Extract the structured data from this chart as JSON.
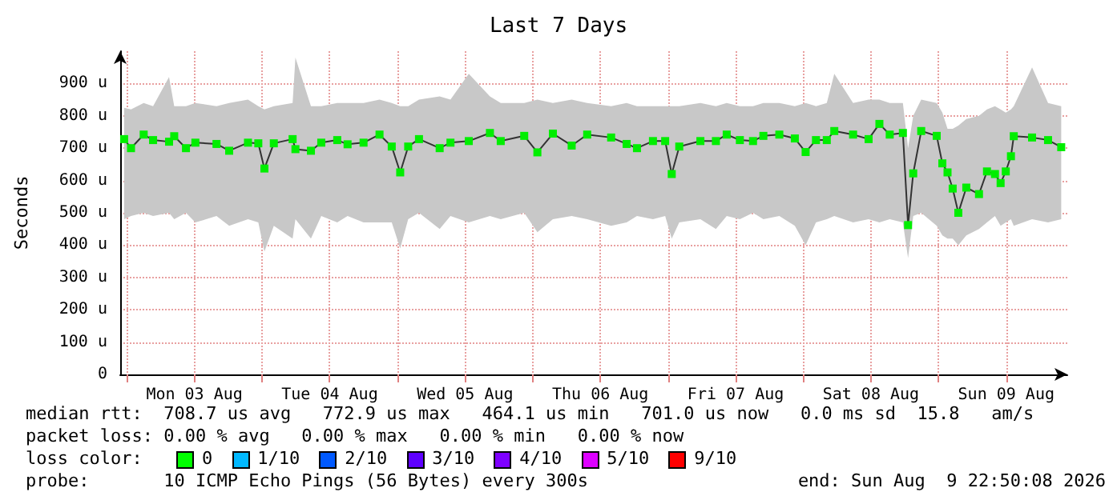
{
  "chart_data": {
    "type": "line",
    "title": "Last 7 Days",
    "ylabel": "Seconds",
    "x": [
      "2026-08-02T23:32",
      "2026-08-03T00:45",
      "2026-08-03T03:00",
      "2026-08-03T04:40",
      "2026-08-03T07:30",
      "2026-08-03T08:25",
      "2026-08-03T10:30",
      "2026-08-03T12:10",
      "2026-08-03T15:55",
      "2026-08-03T18:10",
      "2026-08-03T21:30",
      "2026-08-03T23:20",
      "2026-08-04T00:25",
      "2026-08-04T02:05",
      "2026-08-04T05:25",
      "2026-08-04T05:55",
      "2026-08-04T08:40",
      "2026-08-04T10:30",
      "2026-08-04T13:20",
      "2026-08-04T15:10",
      "2026-08-04T18:00",
      "2026-08-04T20:50",
      "2026-08-04T23:00",
      "2026-08-05T00:30",
      "2026-08-05T01:55",
      "2026-08-05T03:50",
      "2026-08-05T07:30",
      "2026-08-05T09:25",
      "2026-08-05T12:40",
      "2026-08-05T16:25",
      "2026-08-05T18:20",
      "2026-08-05T22:30",
      "2026-08-06T00:50",
      "2026-08-06T03:35",
      "2026-08-06T06:55",
      "2026-08-06T09:40",
      "2026-08-06T13:55",
      "2026-08-06T16:40",
      "2026-08-06T18:30",
      "2026-08-06T21:20",
      "2026-08-06T23:30",
      "2026-08-07T00:40",
      "2026-08-07T02:00",
      "2026-08-07T05:45",
      "2026-08-07T08:30",
      "2026-08-07T10:25",
      "2026-08-07T12:45",
      "2026-08-07T15:05",
      "2026-08-07T16:55",
      "2026-08-07T19:45",
      "2026-08-07T22:30",
      "2026-08-08T00:25",
      "2026-08-08T02:15",
      "2026-08-08T04:10",
      "2026-08-08T05:30",
      "2026-08-08T08:50",
      "2026-08-08T11:35",
      "2026-08-08T13:30",
      "2026-08-08T15:20",
      "2026-08-08T17:40",
      "2026-08-08T18:35",
      "2026-08-08T19:30",
      "2026-08-08T20:55",
      "2026-08-08T23:40",
      "2026-08-09T00:40",
      "2026-08-09T01:35",
      "2026-08-09T02:30",
      "2026-08-09T03:30",
      "2026-08-09T04:55",
      "2026-08-09T07:10",
      "2026-08-09T08:35",
      "2026-08-09T10:00",
      "2026-08-09T11:00",
      "2026-08-09T11:55",
      "2026-08-09T12:50",
      "2026-08-09T13:20",
      "2026-08-09T16:35",
      "2026-08-09T19:25",
      "2026-08-09T21:45"
    ],
    "series": [
      {
        "color": "#00ee00",
        "values": [
          728,
          700,
          742,
          725,
          720,
          737,
          700,
          717,
          713,
          692,
          717,
          715,
          637,
          715,
          728,
          697,
          692,
          717,
          725,
          712,
          717,
          742,
          705,
          625,
          705,
          728,
          700,
          717,
          722,
          747,
          722,
          738,
          687,
          745,
          708,
          742,
          733,
          713,
          700,
          722,
          722,
          620,
          705,
          722,
          722,
          742,
          725,
          722,
          738,
          742,
          730,
          688,
          725,
          725,
          753,
          742,
          728,
          775,
          742,
          747,
          462,
          622,
          753,
          738,
          653,
          625,
          575,
          500,
          578,
          558,
          628,
          620,
          592,
          628,
          675,
          737,
          733,
          725,
          703
        ],
        "lower": [
          480,
          490,
          500,
          490,
          500,
          480,
          500,
          470,
          490,
          460,
          480,
          470,
          380,
          460,
          420,
          480,
          420,
          490,
          470,
          490,
          470,
          470,
          470,
          390,
          480,
          500,
          450,
          490,
          470,
          490,
          480,
          500,
          440,
          480,
          490,
          480,
          460,
          470,
          490,
          480,
          490,
          420,
          470,
          480,
          450,
          490,
          480,
          500,
          480,
          490,
          460,
          400,
          470,
          480,
          490,
          470,
          480,
          470,
          480,
          470,
          360,
          490,
          500,
          460,
          430,
          420,
          420,
          400,
          430,
          450,
          470,
          490,
          460,
          470,
          480,
          460,
          480,
          470,
          480
        ],
        "upper": [
          825,
          820,
          840,
          830,
          920,
          830,
          830,
          840,
          830,
          840,
          850,
          830,
          820,
          830,
          840,
          980,
          830,
          830,
          840,
          840,
          840,
          850,
          840,
          830,
          830,
          850,
          860,
          850,
          930,
          860,
          840,
          840,
          850,
          840,
          850,
          840,
          830,
          840,
          830,
          830,
          830,
          830,
          830,
          840,
          830,
          840,
          830,
          830,
          840,
          840,
          830,
          840,
          830,
          840,
          930,
          840,
          850,
          850,
          840,
          840,
          700,
          800,
          850,
          840,
          810,
          760,
          760,
          770,
          790,
          800,
          820,
          830,
          820,
          810,
          820,
          830,
          950,
          840,
          830
        ]
      }
    ],
    "xlim": [
      "2026-08-02T22:50",
      "2026-08-09T22:50"
    ],
    "xticks": [
      {
        "value": "2026-08-03T00:00",
        "label": null
      },
      {
        "value": "2026-08-03T12:00",
        "label": "Mon 03 Aug"
      },
      {
        "value": "2026-08-04T00:00",
        "label": null
      },
      {
        "value": "2026-08-04T12:00",
        "label": "Tue 04 Aug"
      },
      {
        "value": "2026-08-05T00:00",
        "label": null
      },
      {
        "value": "2026-08-05T12:00",
        "label": "Wed 05 Aug"
      },
      {
        "value": "2026-08-06T00:00",
        "label": null
      },
      {
        "value": "2026-08-06T12:00",
        "label": "Thu 06 Aug"
      },
      {
        "value": "2026-08-07T00:00",
        "label": null
      },
      {
        "value": "2026-08-07T12:00",
        "label": "Fri 07 Aug"
      },
      {
        "value": "2026-08-08T00:00",
        "label": null
      },
      {
        "value": "2026-08-08T12:00",
        "label": "Sat 08 Aug"
      },
      {
        "value": "2026-08-09T00:00",
        "label": null
      },
      {
        "value": "2026-08-09T12:00",
        "label": "Sun 09 Aug"
      }
    ],
    "ylim": [
      0,
      1000
    ],
    "yticks": [
      0,
      {
        "value": 100,
        "label": "100 u"
      },
      {
        "value": 200,
        "label": "200 u"
      },
      {
        "value": 300,
        "label": "300 u"
      },
      {
        "value": 400,
        "label": "400 u"
      },
      {
        "value": 500,
        "label": "500 u"
      },
      {
        "value": 600,
        "label": "600 u"
      },
      {
        "value": 700,
        "label": "700 u"
      },
      {
        "value": 800,
        "label": "800 u"
      },
      {
        "value": 900,
        "label": "900 u"
      }
    ],
    "grid": true,
    "marker": "square",
    "annotations": [
      "median rtt:  708.7 us avg   772.9 us max   464.1 us min   701.0 us now   0.0 ms sd  15.8   am/s",
      "packet loss: 0.00 % avg   0.00 % max   0.00 % min   0.00 % now",
      "loss color:",
      "0",
      "1/10",
      "2/10",
      "3/10",
      "4/10",
      "5/10",
      "9/10",
      "probe:       10 ICMP Echo Pings (56 Bytes) every 300s",
      "end: Sun Aug  9 22:50:08 2026"
    ]
  }
}
